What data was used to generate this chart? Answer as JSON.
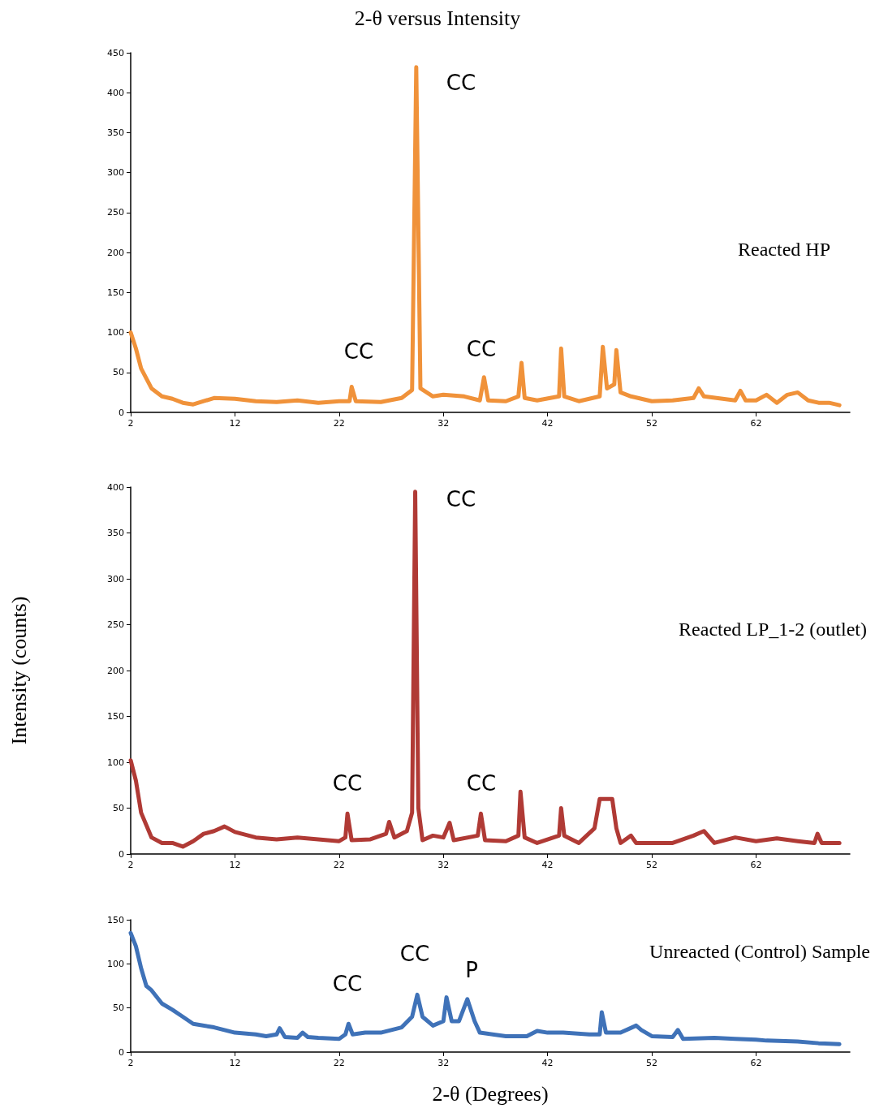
{
  "chart_data": [
    {
      "type": "line",
      "title": "2-θ versus Intensity",
      "xlim": [
        2,
        71
      ],
      "xticks": [
        2,
        12,
        22,
        32,
        42,
        52,
        62
      ],
      "ylim": [
        0,
        450
      ],
      "yticks": [
        0,
        50,
        100,
        150,
        200,
        250,
        300,
        350,
        400,
        450
      ],
      "grid": false,
      "legend": false,
      "marker": "none",
      "annotations": [
        "CC",
        "CC",
        "CC"
      ],
      "series": [
        {
          "name": "Reacted HP",
          "color": "#f0923a",
          "x": [
            2,
            2.5,
            3,
            4,
            5,
            6,
            7,
            8,
            9,
            10,
            12,
            14,
            16,
            18,
            20,
            22,
            23,
            23.2,
            23.6,
            26,
            28,
            29,
            29.4,
            29.8,
            31,
            32,
            34,
            35.5,
            35.9,
            36.3,
            38,
            39.2,
            39.5,
            39.8,
            41,
            43.1,
            43.3,
            43.6,
            45,
            47,
            47.3,
            47.7,
            48.4,
            48.6,
            49,
            50,
            52,
            54,
            56,
            56.5,
            57,
            60,
            60.5,
            61,
            62,
            63,
            64,
            65,
            66,
            67,
            68,
            69,
            70
          ],
          "values": [
            100,
            80,
            55,
            30,
            20,
            17,
            12,
            10,
            14,
            18,
            17,
            14,
            13,
            15,
            12,
            14,
            14,
            32,
            14,
            13,
            18,
            28,
            432,
            30,
            20,
            22,
            20,
            15,
            44,
            15,
            14,
            20,
            62,
            18,
            15,
            20,
            80,
            20,
            14,
            20,
            82,
            30,
            35,
            78,
            25,
            20,
            14,
            15,
            18,
            30,
            20,
            15,
            27,
            15,
            15,
            22,
            12,
            22,
            25,
            15,
            12,
            12,
            9
          ]
        }
      ]
    },
    {
      "type": "line",
      "ylabel": "Intensity (counts)",
      "xlim": [
        2,
        71
      ],
      "xticks": [
        2,
        12,
        22,
        32,
        42,
        52,
        62
      ],
      "ylim": [
        0,
        400
      ],
      "yticks": [
        0,
        50,
        100,
        150,
        200,
        250,
        300,
        350,
        400
      ],
      "grid": false,
      "legend": false,
      "marker": "none",
      "annotations": [
        "CC",
        "CC",
        "CC"
      ],
      "series": [
        {
          "name": "Reacted LP_1-2 (outlet)",
          "color": "#b03a35",
          "x": [
            2,
            2.5,
            3,
            4,
            5,
            6,
            7,
            8,
            9,
            10,
            11,
            12,
            14,
            16,
            18,
            20,
            22,
            22.6,
            22.8,
            23.2,
            25,
            26.5,
            26.8,
            27.3,
            28.5,
            29,
            29.3,
            29.6,
            30,
            31,
            32,
            32.6,
            33,
            35.3,
            35.6,
            36,
            38,
            39.2,
            39.4,
            39.8,
            41,
            43.1,
            43.3,
            43.6,
            45,
            46.5,
            47,
            48.2,
            48.6,
            49,
            50,
            50.5,
            54,
            56,
            57,
            58,
            60,
            62,
            64,
            66,
            67.6,
            67.9,
            68.3,
            70
          ],
          "values": [
            102,
            80,
            45,
            18,
            12,
            12,
            8,
            14,
            22,
            25,
            30,
            24,
            18,
            16,
            18,
            16,
            14,
            18,
            44,
            15,
            16,
            22,
            35,
            18,
            25,
            45,
            395,
            50,
            15,
            20,
            18,
            34,
            15,
            20,
            44,
            15,
            14,
            20,
            68,
            18,
            12,
            20,
            50,
            20,
            12,
            28,
            60,
            60,
            28,
            12,
            20,
            12,
            12,
            20,
            25,
            12,
            18,
            14,
            17,
            14,
            12,
            22,
            12,
            12
          ]
        }
      ]
    },
    {
      "type": "line",
      "xlabel": "2-θ (Degrees)",
      "xlim": [
        2,
        71
      ],
      "xticks": [
        2,
        12,
        22,
        32,
        42,
        52,
        62
      ],
      "ylim": [
        0,
        150
      ],
      "yticks": [
        0,
        50,
        100,
        150
      ],
      "grid": false,
      "legend": false,
      "marker": "none",
      "annotations": [
        "CC",
        "CC",
        "P"
      ],
      "series": [
        {
          "name": "Unreacted (Control) Sample",
          "color": "#3f72b8",
          "x": [
            2,
            2.5,
            3,
            3.5,
            4,
            5,
            6,
            7,
            8,
            10,
            12,
            14,
            15,
            16,
            16.3,
            16.8,
            18,
            18.5,
            19,
            20,
            22,
            22.6,
            22.9,
            23.3,
            24.5,
            26,
            28,
            29,
            29.5,
            30,
            31,
            32,
            32.3,
            32.8,
            33.5,
            34.3,
            35,
            35.5,
            38,
            40,
            41,
            42,
            43.5,
            46,
            47,
            47.2,
            47.6,
            49,
            50.5,
            51,
            52,
            54,
            54.5,
            55,
            58,
            60,
            62,
            63,
            66,
            68,
            70
          ],
          "values": [
            135,
            120,
            95,
            75,
            70,
            55,
            48,
            40,
            32,
            28,
            22,
            20,
            18,
            20,
            27,
            17,
            16,
            22,
            17,
            16,
            15,
            20,
            32,
            20,
            22,
            22,
            28,
            40,
            65,
            40,
            30,
            35,
            62,
            35,
            35,
            60,
            35,
            22,
            18,
            18,
            24,
            22,
            22,
            20,
            20,
            45,
            22,
            22,
            30,
            25,
            18,
            17,
            25,
            15,
            16,
            15,
            14,
            13,
            12,
            10,
            9
          ]
        }
      ]
    }
  ]
}
